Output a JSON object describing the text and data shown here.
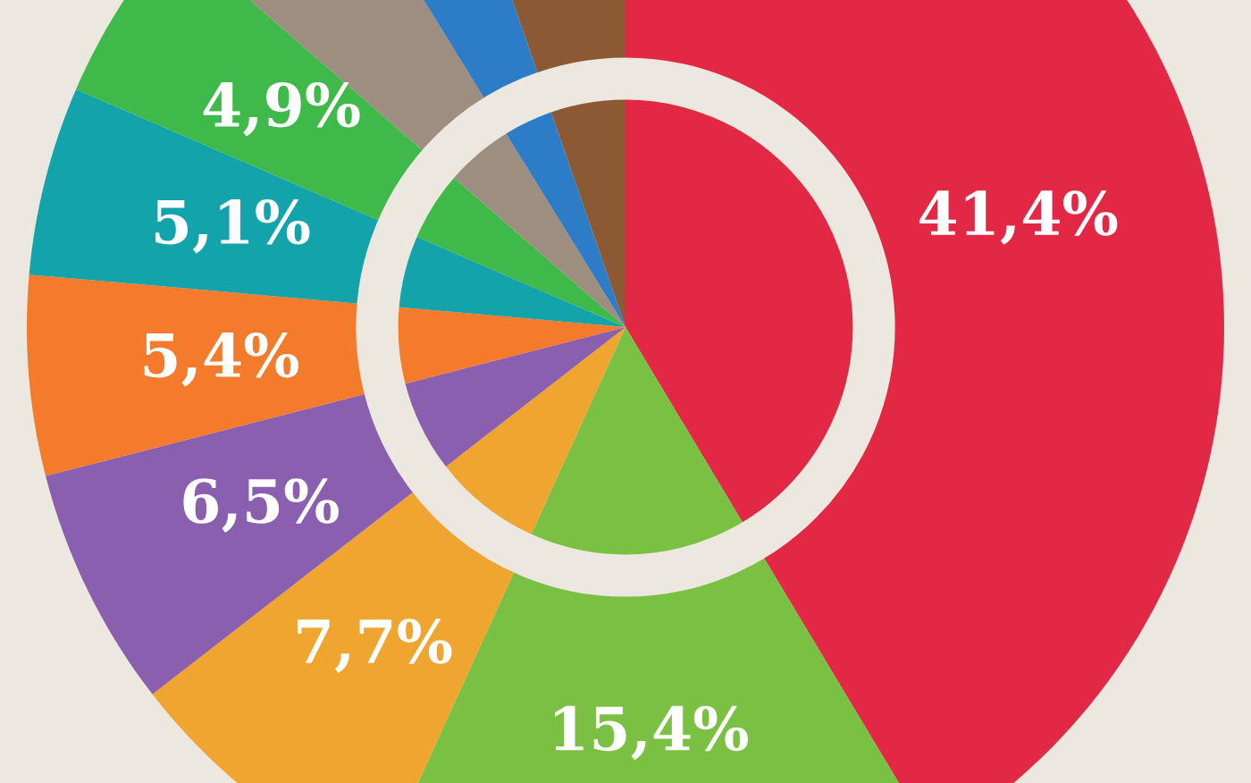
{
  "chart_data": {
    "type": "pie",
    "categories": [
      null,
      null,
      null,
      null,
      null,
      null,
      null,
      null,
      null,
      null
    ],
    "values": [
      41.4,
      15.4,
      7.7,
      6.5,
      5.4,
      5.1,
      4.9,
      4.8,
      3.5,
      5.3
    ],
    "colors": [
      "#e32845",
      "#7ac143",
      "#efa530",
      "#8a5fb0",
      "#f47a2c",
      "#13a3aa",
      "#3fba4a",
      "#9e8e80",
      "#2c7cc8",
      "#8b5a34"
    ],
    "value_labels": [
      "41,4%",
      "15,4%",
      "7,7%",
      "6,5%",
      "5,4%",
      "5,1%",
      "4,9%",
      null,
      null,
      null
    ]
  }
}
